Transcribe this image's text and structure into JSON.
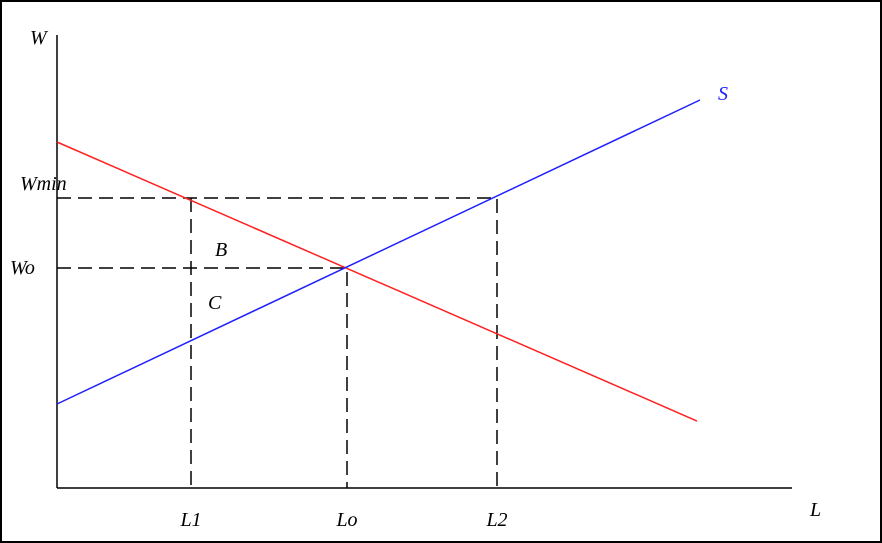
{
  "axes": {
    "y_label": "W",
    "x_label": "L"
  },
  "wage_labels": {
    "min": "Wmin",
    "equilibrium": "Wo"
  },
  "labor_labels": {
    "l1": "L1",
    "equilibrium": "Lo",
    "l2": "L2"
  },
  "regions": {
    "b": "B",
    "c": "C"
  },
  "curves": {
    "supply": "S"
  }
}
